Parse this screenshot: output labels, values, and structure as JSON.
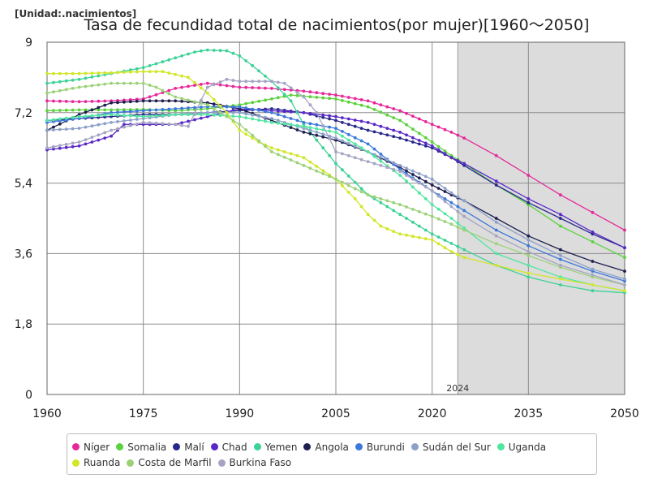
{
  "unit_label": "[Unidad:.nacimientos]",
  "title": "Tasa de fecundidad total de nacimientos(por mujer)[1960〜2050]",
  "chart_data": {
    "type": "line",
    "x_ticks": [
      1960,
      1975,
      1990,
      2005,
      2020,
      2035,
      2050
    ],
    "x_tick_labels": [
      "1960",
      "1975",
      "1990",
      "2005",
      "2020",
      "2035",
      "2050"
    ],
    "y_ticks": [
      0,
      1.8,
      3.6,
      5.4,
      7.2,
      9
    ],
    "y_tick_labels": [
      "0",
      "1,8",
      "3,6",
      "5,4",
      "7,2",
      "9"
    ],
    "xlim": [
      1960,
      2050
    ],
    "ylim": [
      0,
      9
    ],
    "grid": true,
    "projection_start": 2024,
    "projection_label": "2024",
    "legend_position": "bottom",
    "series": [
      {
        "name": "Níger",
        "color": "#e6289b",
        "points": [
          [
            1960,
            7.5
          ],
          [
            1965,
            7.48
          ],
          [
            1970,
            7.5
          ],
          [
            1975,
            7.55
          ],
          [
            1980,
            7.82
          ],
          [
            1985,
            7.95
          ],
          [
            1990,
            7.85
          ],
          [
            1995,
            7.82
          ],
          [
            2000,
            7.75
          ],
          [
            2005,
            7.65
          ],
          [
            2010,
            7.5
          ],
          [
            2015,
            7.25
          ],
          [
            2020,
            6.9
          ],
          [
            2023,
            6.7
          ],
          [
            2025,
            6.55
          ],
          [
            2030,
            6.1
          ],
          [
            2035,
            5.6
          ],
          [
            2040,
            5.1
          ],
          [
            2045,
            4.65
          ],
          [
            2050,
            4.2
          ]
        ]
      },
      {
        "name": "Somalia",
        "color": "#5ad23c",
        "points": [
          [
            1960,
            7.25
          ],
          [
            1965,
            7.27
          ],
          [
            1970,
            7.27
          ],
          [
            1975,
            7.28
          ],
          [
            1980,
            7.25
          ],
          [
            1985,
            7.3
          ],
          [
            1990,
            7.4
          ],
          [
            1995,
            7.55
          ],
          [
            1998,
            7.65
          ],
          [
            2000,
            7.62
          ],
          [
            2005,
            7.55
          ],
          [
            2010,
            7.35
          ],
          [
            2015,
            7.0
          ],
          [
            2020,
            6.45
          ],
          [
            2023,
            6.1
          ],
          [
            2025,
            5.9
          ],
          [
            2030,
            5.35
          ],
          [
            2035,
            4.85
          ],
          [
            2040,
            4.3
          ],
          [
            2045,
            3.9
          ],
          [
            2050,
            3.5
          ]
        ]
      },
      {
        "name": "Malí",
        "color": "#28288c",
        "points": [
          [
            1960,
            7.0
          ],
          [
            1965,
            7.05
          ],
          [
            1970,
            7.1
          ],
          [
            1975,
            7.15
          ],
          [
            1980,
            7.15
          ],
          [
            1985,
            7.2
          ],
          [
            1990,
            7.25
          ],
          [
            1995,
            7.3
          ],
          [
            2000,
            7.2
          ],
          [
            2005,
            7.0
          ],
          [
            2010,
            6.75
          ],
          [
            2015,
            6.55
          ],
          [
            2020,
            6.3
          ],
          [
            2023,
            6.05
          ],
          [
            2025,
            5.85
          ],
          [
            2030,
            5.35
          ],
          [
            2035,
            4.9
          ],
          [
            2040,
            4.5
          ],
          [
            2045,
            4.1
          ],
          [
            2050,
            3.75
          ]
        ]
      },
      {
        "name": "Chad",
        "color": "#5a28c8",
        "points": [
          [
            1960,
            6.25
          ],
          [
            1965,
            6.35
          ],
          [
            1970,
            6.6
          ],
          [
            1972,
            6.9
          ],
          [
            1975,
            6.9
          ],
          [
            1980,
            6.9
          ],
          [
            1985,
            7.1
          ],
          [
            1990,
            7.3
          ],
          [
            1995,
            7.25
          ],
          [
            2000,
            7.2
          ],
          [
            2005,
            7.1
          ],
          [
            2010,
            6.95
          ],
          [
            2015,
            6.7
          ],
          [
            2020,
            6.35
          ],
          [
            2023,
            6.05
          ],
          [
            2025,
            5.9
          ],
          [
            2030,
            5.45
          ],
          [
            2035,
            5.0
          ],
          [
            2040,
            4.6
          ],
          [
            2045,
            4.15
          ],
          [
            2050,
            3.75
          ]
        ]
      },
      {
        "name": "Yemen",
        "color": "#3cd296",
        "points": [
          [
            1960,
            7.95
          ],
          [
            1965,
            8.05
          ],
          [
            1970,
            8.2
          ],
          [
            1975,
            8.35
          ],
          [
            1980,
            8.6
          ],
          [
            1983,
            8.75
          ],
          [
            1985,
            8.8
          ],
          [
            1988,
            8.78
          ],
          [
            1990,
            8.65
          ],
          [
            1992,
            8.4
          ],
          [
            1995,
            8.0
          ],
          [
            1998,
            7.5
          ],
          [
            2000,
            6.9
          ],
          [
            2003,
            6.3
          ],
          [
            2005,
            5.9
          ],
          [
            2010,
            5.1
          ],
          [
            2015,
            4.6
          ],
          [
            2020,
            4.1
          ],
          [
            2025,
            3.7
          ],
          [
            2030,
            3.3
          ],
          [
            2035,
            3.0
          ],
          [
            2040,
            2.8
          ],
          [
            2045,
            2.65
          ],
          [
            2050,
            2.6
          ]
        ]
      },
      {
        "name": "Angola",
        "color": "#1e1e50",
        "points": [
          [
            1960,
            6.75
          ],
          [
            1965,
            7.15
          ],
          [
            1970,
            7.45
          ],
          [
            1975,
            7.5
          ],
          [
            1980,
            7.5
          ],
          [
            1985,
            7.45
          ],
          [
            1990,
            7.3
          ],
          [
            1995,
            7.0
          ],
          [
            2000,
            6.7
          ],
          [
            2005,
            6.5
          ],
          [
            2010,
            6.2
          ],
          [
            2015,
            5.8
          ],
          [
            2020,
            5.35
          ],
          [
            2023,
            5.1
          ],
          [
            2025,
            4.95
          ],
          [
            2030,
            4.5
          ],
          [
            2035,
            4.05
          ],
          [
            2040,
            3.7
          ],
          [
            2045,
            3.4
          ],
          [
            2050,
            3.15
          ]
        ]
      },
      {
        "name": "Burundi",
        "color": "#3c78dc",
        "points": [
          [
            1960,
            6.95
          ],
          [
            1965,
            7.05
          ],
          [
            1970,
            7.2
          ],
          [
            1975,
            7.25
          ],
          [
            1980,
            7.3
          ],
          [
            1985,
            7.35
          ],
          [
            1990,
            7.35
          ],
          [
            1995,
            7.2
          ],
          [
            2000,
            6.95
          ],
          [
            2005,
            6.8
          ],
          [
            2010,
            6.4
          ],
          [
            2015,
            5.75
          ],
          [
            2020,
            5.2
          ],
          [
            2023,
            4.9
          ],
          [
            2025,
            4.7
          ],
          [
            2030,
            4.2
          ],
          [
            2035,
            3.8
          ],
          [
            2040,
            3.45
          ],
          [
            2045,
            3.15
          ],
          [
            2050,
            2.9
          ]
        ]
      },
      {
        "name": "Sudán del Sur",
        "color": "#8ca0c8",
        "points": [
          [
            1960,
            6.75
          ],
          [
            1965,
            6.8
          ],
          [
            1970,
            6.95
          ],
          [
            1975,
            7.05
          ],
          [
            1980,
            7.15
          ],
          [
            1985,
            7.2
          ],
          [
            1990,
            7.2
          ],
          [
            1995,
            7.05
          ],
          [
            2000,
            6.8
          ],
          [
            2005,
            6.55
          ],
          [
            2010,
            6.2
          ],
          [
            2015,
            5.85
          ],
          [
            2020,
            5.5
          ],
          [
            2023,
            5.15
          ],
          [
            2025,
            4.95
          ],
          [
            2030,
            4.4
          ],
          [
            2035,
            3.95
          ],
          [
            2040,
            3.55
          ],
          [
            2045,
            3.2
          ],
          [
            2050,
            2.95
          ]
        ]
      },
      {
        "name": "Uganda",
        "color": "#50e6a0",
        "points": [
          [
            1960,
            7.0
          ],
          [
            1965,
            7.1
          ],
          [
            1970,
            7.15
          ],
          [
            1975,
            7.1
          ],
          [
            1980,
            7.15
          ],
          [
            1985,
            7.15
          ],
          [
            1990,
            7.1
          ],
          [
            1995,
            6.95
          ],
          [
            2000,
            6.85
          ],
          [
            2005,
            6.7
          ],
          [
            2010,
            6.2
          ],
          [
            2015,
            5.6
          ],
          [
            2020,
            4.85
          ],
          [
            2023,
            4.5
          ],
          [
            2025,
            4.25
          ],
          [
            2030,
            3.6
          ],
          [
            2035,
            3.3
          ],
          [
            2040,
            3.0
          ],
          [
            2045,
            2.8
          ],
          [
            2050,
            2.65
          ]
        ]
      },
      {
        "name": "Ruanda",
        "color": "#d2e628",
        "points": [
          [
            1960,
            8.2
          ],
          [
            1965,
            8.2
          ],
          [
            1970,
            8.22
          ],
          [
            1975,
            8.25
          ],
          [
            1978,
            8.25
          ],
          [
            1982,
            8.1
          ],
          [
            1985,
            7.7
          ],
          [
            1988,
            7.2
          ],
          [
            1990,
            6.75
          ],
          [
            1993,
            6.45
          ],
          [
            1995,
            6.3
          ],
          [
            2000,
            6.05
          ],
          [
            2005,
            5.5
          ],
          [
            2008,
            5.0
          ],
          [
            2010,
            4.6
          ],
          [
            2012,
            4.3
          ],
          [
            2015,
            4.1
          ],
          [
            2020,
            3.95
          ],
          [
            2023,
            3.65
          ],
          [
            2025,
            3.5
          ],
          [
            2030,
            3.3
          ],
          [
            2035,
            3.1
          ],
          [
            2040,
            2.95
          ],
          [
            2045,
            2.8
          ],
          [
            2050,
            2.65
          ]
        ]
      },
      {
        "name": "Costa de Marfil",
        "color": "#9bd278",
        "points": [
          [
            1960,
            7.7
          ],
          [
            1965,
            7.85
          ],
          [
            1970,
            7.95
          ],
          [
            1975,
            7.95
          ],
          [
            1977,
            7.85
          ],
          [
            1980,
            7.6
          ],
          [
            1985,
            7.4
          ],
          [
            1990,
            6.9
          ],
          [
            1995,
            6.2
          ],
          [
            2000,
            5.85
          ],
          [
            2005,
            5.5
          ],
          [
            2010,
            5.1
          ],
          [
            2015,
            4.85
          ],
          [
            2020,
            4.55
          ],
          [
            2023,
            4.35
          ],
          [
            2025,
            4.2
          ],
          [
            2030,
            3.85
          ],
          [
            2035,
            3.55
          ],
          [
            2040,
            3.25
          ],
          [
            2045,
            3.0
          ],
          [
            2050,
            2.8
          ]
        ]
      },
      {
        "name": "Burkina Faso",
        "color": "#a5a5c3",
        "points": [
          [
            1960,
            6.3
          ],
          [
            1965,
            6.45
          ],
          [
            1970,
            6.75
          ],
          [
            1975,
            6.95
          ],
          [
            1980,
            6.9
          ],
          [
            1982,
            6.85
          ],
          [
            1985,
            7.85
          ],
          [
            1988,
            8.05
          ],
          [
            1990,
            8.0
          ],
          [
            1995,
            8.0
          ],
          [
            1997,
            7.95
          ],
          [
            2000,
            7.6
          ],
          [
            2002,
            7.2
          ],
          [
            2005,
            6.2
          ],
          [
            2007,
            6.1
          ],
          [
            2010,
            5.95
          ],
          [
            2015,
            5.7
          ],
          [
            2020,
            5.2
          ],
          [
            2023,
            4.8
          ],
          [
            2025,
            4.55
          ],
          [
            2030,
            4.05
          ],
          [
            2035,
            3.65
          ],
          [
            2040,
            3.3
          ],
          [
            2045,
            3.05
          ],
          [
            2050,
            2.8
          ]
        ]
      }
    ]
  }
}
